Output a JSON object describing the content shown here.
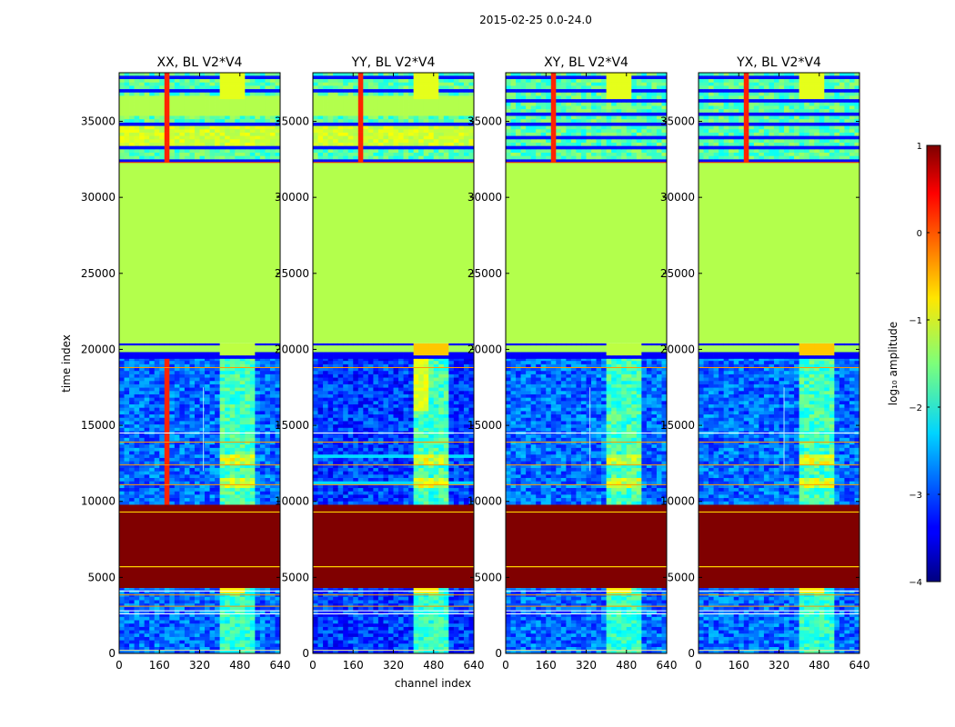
{
  "suptitle": "2015-02-25 0.0-24.0",
  "chart_data": {
    "type": "heatmap",
    "xlabel": "channel index",
    "ylabel": "time index",
    "xlim": [
      0,
      640
    ],
    "ylim": [
      0,
      38200
    ],
    "x_ticks": [
      0,
      160,
      320,
      480,
      640
    ],
    "y_ticks": [
      0,
      5000,
      10000,
      15000,
      20000,
      25000,
      30000,
      35000
    ],
    "panels": [
      {
        "title": "XX, BL V2*V4",
        "style": "XX"
      },
      {
        "title": "YY, BL V2*V4",
        "style": "YY"
      },
      {
        "title": "XY, BL V2*V4",
        "style": "XY"
      },
      {
        "title": "YX, BL V2*V4",
        "style": "YX"
      }
    ],
    "time_regions": [
      {
        "from": 0,
        "to": 4300,
        "level": -2.9,
        "note": "noisy baseline with RFI bands"
      },
      {
        "from": 4300,
        "to": 9800,
        "level": 1.0,
        "note": "saturated"
      },
      {
        "from": 9800,
        "to": 19400,
        "level": -3.0,
        "note": "noisy baseline with RFI bands"
      },
      {
        "from": 19400,
        "to": 20400,
        "level": -2.5,
        "note": "flagged stripes"
      },
      {
        "from": 20400,
        "to": 32300,
        "level": -1.25,
        "note": "constant fill"
      },
      {
        "from": 32300,
        "to": 38200,
        "level": -1.8,
        "note": "mixed / flagged stripes"
      }
    ],
    "rfi_channel_bands": [
      [
        400,
        440
      ],
      [
        450,
        475
      ],
      [
        480,
        495
      ],
      [
        500,
        510
      ],
      [
        530,
        545
      ]
    ],
    "strong_rfi_channel": 190,
    "colorbar": {
      "label": "log₁₀ amplitude",
      "range": [
        -4,
        1
      ],
      "ticks": [
        1,
        0,
        -1,
        -2,
        -3,
        -4
      ],
      "tick_labels": [
        "1",
        "0",
        "−1",
        "−2",
        "−3",
        "−4"
      ],
      "colormap": "jet"
    }
  }
}
